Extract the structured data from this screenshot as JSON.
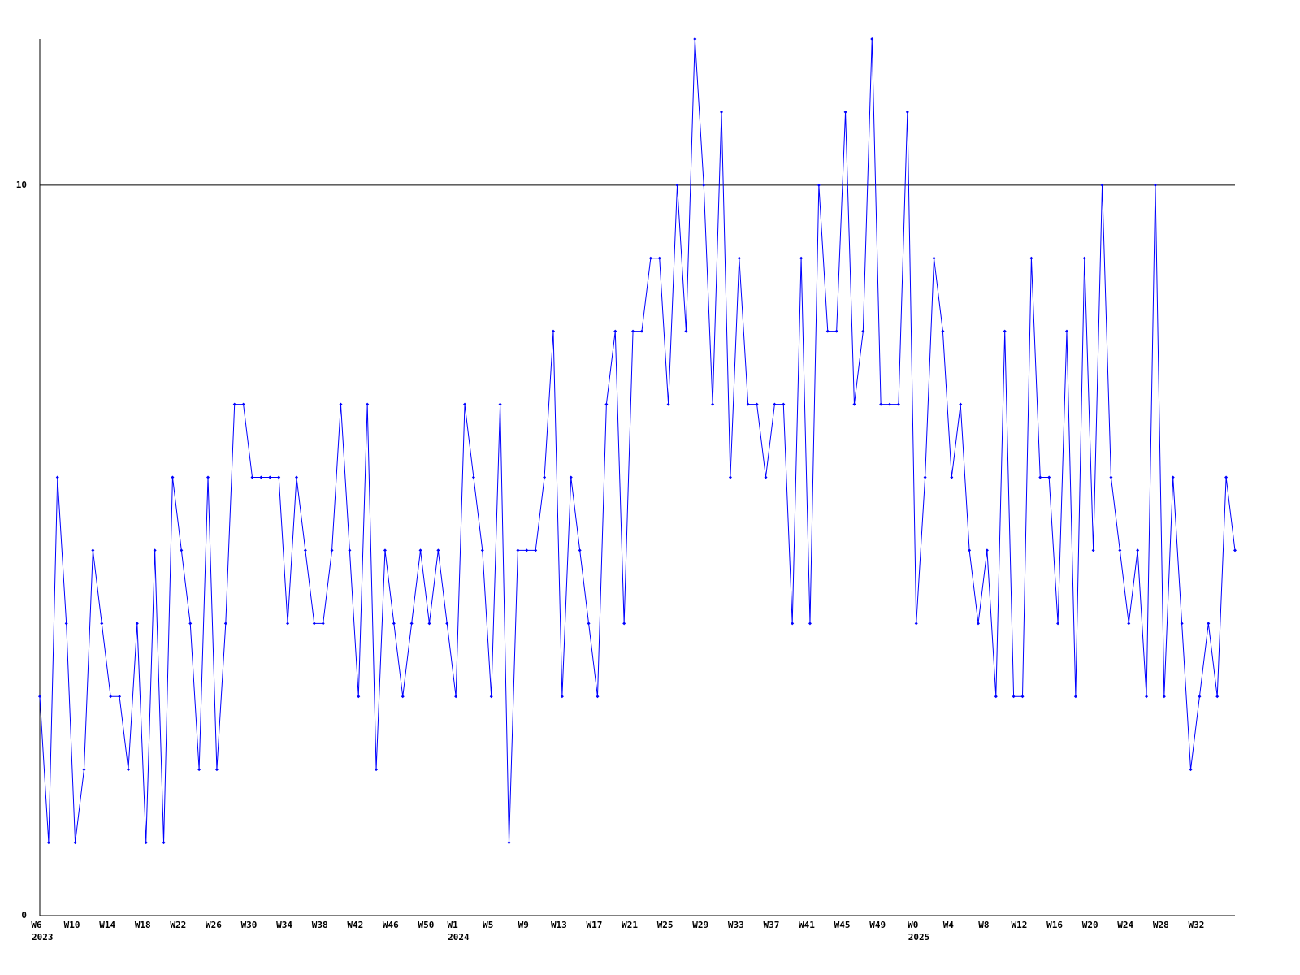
{
  "chart_data": {
    "type": "line",
    "color": "#0000ff",
    "ylim": [
      0,
      12
    ],
    "yticks": [
      0,
      10
    ],
    "grid": true,
    "categories": [
      "W6",
      null,
      null,
      null,
      "W10",
      null,
      null,
      null,
      "W14",
      null,
      null,
      null,
      "W18",
      null,
      null,
      null,
      "W22",
      null,
      null,
      null,
      "W26",
      null,
      null,
      null,
      "W30",
      null,
      null,
      null,
      "W34",
      null,
      null,
      null,
      "W38",
      null,
      null,
      null,
      "W42",
      null,
      null,
      null,
      "W46",
      null,
      null,
      null,
      "W50",
      null,
      null,
      "W1",
      null,
      null,
      null,
      "W5",
      null,
      null,
      null,
      "W9",
      null,
      null,
      null,
      "W13",
      null,
      null,
      null,
      "W17",
      null,
      null,
      null,
      "W21",
      null,
      null,
      null,
      "W25",
      null,
      null,
      null,
      "W29",
      null,
      null,
      null,
      "W33",
      null,
      null,
      null,
      "W37",
      null,
      null,
      null,
      "W41",
      null,
      null,
      null,
      "W45",
      null,
      null,
      null,
      "W49",
      null,
      null,
      null,
      "W0",
      null,
      null,
      null,
      "W4",
      null,
      null,
      null,
      "W8",
      null,
      null,
      null,
      "W12",
      null,
      null,
      null,
      "W16",
      null,
      null,
      null,
      "W20",
      null,
      null,
      null,
      "W24",
      null,
      null,
      null,
      "W28",
      null,
      null,
      null,
      "W32",
      null,
      null,
      null,
      null
    ],
    "year_labels": [
      {
        "label": "2023",
        "index": 0
      },
      {
        "label": "2024",
        "index": 47
      },
      {
        "label": "2025",
        "index": 99
      }
    ],
    "values": [
      3,
      1,
      6,
      4,
      1,
      2,
      5,
      4,
      3,
      3,
      2,
      4,
      1,
      5,
      1,
      6,
      5,
      4,
      2,
      6,
      2,
      4,
      7,
      7,
      6,
      6,
      6,
      6,
      4,
      6,
      5,
      4,
      4,
      5,
      7,
      5,
      3,
      7,
      2,
      5,
      4,
      3,
      4,
      5,
      4,
      5,
      4,
      3,
      7,
      6,
      5,
      3,
      7,
      1,
      5,
      5,
      5,
      6,
      8,
      3,
      6,
      5,
      4,
      3,
      7,
      8,
      4,
      8,
      8,
      9,
      9,
      7,
      10,
      8,
      12,
      10,
      7,
      11,
      6,
      9,
      7,
      7,
      6,
      7,
      7,
      4,
      9,
      4,
      10,
      8,
      8,
      11,
      7,
      8,
      12,
      7,
      7,
      7,
      11,
      4,
      6,
      9,
      8,
      6,
      7,
      5,
      4,
      5,
      3,
      8,
      3,
      3,
      9,
      6,
      6,
      4,
      8,
      3,
      9,
      5,
      10,
      6,
      5,
      4,
      5,
      3,
      10,
      3,
      6,
      4,
      2,
      3,
      4,
      3,
      6,
      5
    ]
  }
}
